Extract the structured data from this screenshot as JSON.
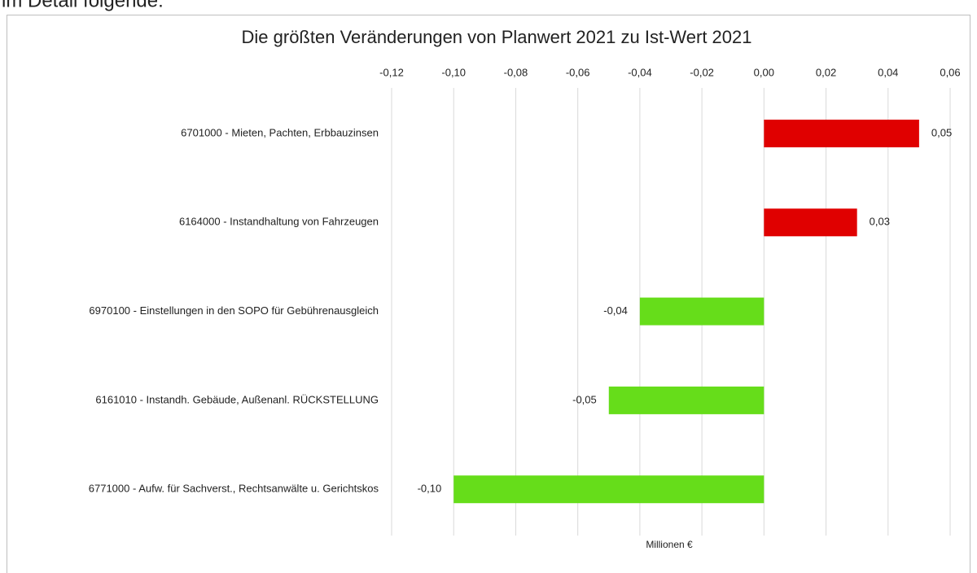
{
  "document": {
    "text": "im Detail folgende:"
  },
  "chart_data": {
    "type": "bar",
    "orientation": "horizontal",
    "title": "Die größten Veränderungen von Planwert 2021 zu Ist-Wert 2021",
    "xlabel": "Millionen €",
    "categories": [
      "6701000 - Mieten, Pachten, Erbbauzinsen",
      "6164000 - Instandhaltung von Fahrzeugen",
      "6970100 - Einstellungen in den SOPO für Gebührenausgleich",
      "6161010 - Instandh. Gebäude, Außenanl. RÜCKSTELLUNG",
      "6771000 - Aufw. für Sachverst., Rechtsanwälte u. Gerichtskos"
    ],
    "values": [
      0.05,
      0.03,
      -0.04,
      -0.05,
      -0.1
    ],
    "value_labels": [
      "0,05",
      "0,03",
      "-0,04",
      "-0,05",
      "-0,10"
    ],
    "colors": [
      "#e00000",
      "#e00000",
      "#66dd1a",
      "#66dd1a",
      "#66dd1a"
    ],
    "xlim": [
      -0.12,
      0.06
    ],
    "xticks": [
      {
        "value": -0.12,
        "label": "-0,12"
      },
      {
        "value": -0.1,
        "label": "-0,10"
      },
      {
        "value": -0.08,
        "label": "-0,08"
      },
      {
        "value": -0.06,
        "label": "-0,06"
      },
      {
        "value": -0.04,
        "label": "-0,04"
      },
      {
        "value": -0.02,
        "label": "-0,02"
      },
      {
        "value": 0,
        "label": "0,00"
      },
      {
        "value": 0.02,
        "label": "0,02"
      },
      {
        "value": 0.04,
        "label": "0,04"
      },
      {
        "value": 0.06,
        "label": "0,06"
      }
    ],
    "grid": true
  }
}
